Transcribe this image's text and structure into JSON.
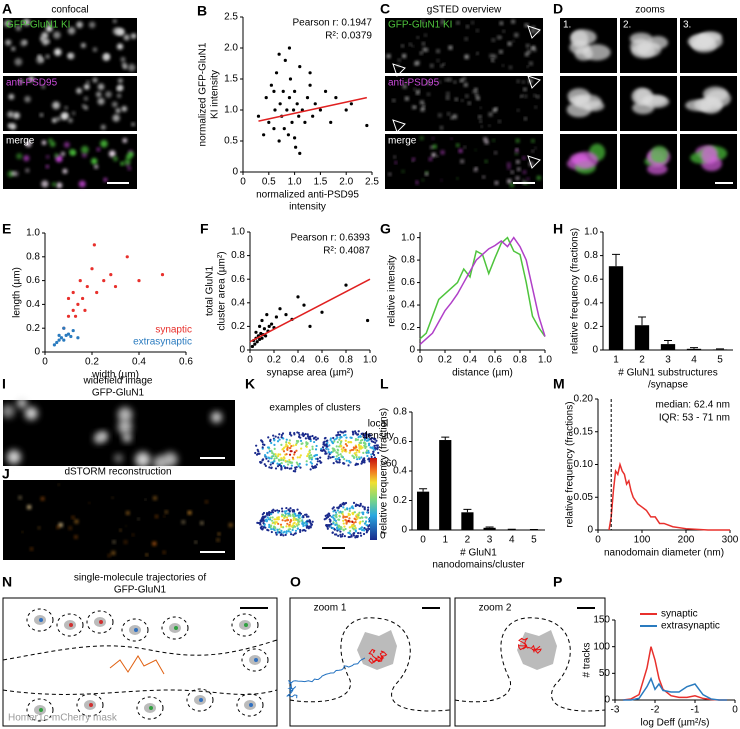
{
  "chart_data": [
    {
      "panel": "B",
      "type": "scatter",
      "annotations": [
        "Pearson r: 0.1947",
        "R²: 0.0379"
      ],
      "xlabel": [
        "normalized anti-PSD95",
        "intensity"
      ],
      "ylabel": [
        "normalized GFP-GluN1",
        "KI intensity"
      ],
      "x": [
        0.3,
        0.4,
        0.45,
        0.5,
        0.55,
        0.6,
        0.62,
        0.65,
        0.7,
        0.72,
        0.75,
        0.78,
        0.8,
        0.82,
        0.85,
        0.88,
        0.9,
        0.92,
        0.95,
        0.98,
        1.0,
        1.02,
        1.05,
        1.08,
        1.1,
        1.15,
        1.2,
        1.25,
        1.3,
        1.35,
        1.4,
        1.5,
        1.6,
        1.7,
        1.8,
        2.0,
        2.1,
        2.4,
        0.7,
        0.9,
        1.1,
        1.3,
        0.6,
        1.0
      ],
      "values": [
        0.9,
        0.6,
        1.2,
        0.8,
        1.4,
        0.7,
        1.0,
        1.6,
        0.5,
        1.1,
        0.9,
        1.3,
        0.7,
        1.8,
        1.0,
        0.6,
        1.2,
        1.5,
        0.8,
        1.0,
        1.3,
        0.4,
        1.1,
        0.9,
        1.7,
        1.0,
        0.8,
        1.2,
        1.4,
        0.9,
        1.1,
        1.0,
        1.3,
        0.8,
        1.2,
        1.0,
        1.1,
        0.75,
        1.9,
        2.0,
        0.3,
        1.6,
        1.3,
        0.55
      ],
      "color": "#000000",
      "fit": {
        "x": [
          0.3,
          2.4
        ],
        "values": [
          0.82,
          1.2
        ],
        "color": "#e02020"
      },
      "xlim": [
        0,
        2.5
      ],
      "xticks": [
        0,
        0.5,
        {
          "value": 1,
          "label": "1.0"
        },
        1.5,
        {
          "value": 2,
          "label": "2.0"
        },
        2.5
      ],
      "ylim": [
        0,
        2.5
      ],
      "yticks": [
        0,
        0.5,
        {
          "value": 1,
          "label": "1.0"
        },
        1.5,
        {
          "value": 2,
          "label": "2.0"
        },
        2.5
      ]
    },
    {
      "panel": "E",
      "type": "scatter",
      "xlabel": [
        "width (µm)"
      ],
      "ylabel": [
        "length (µm)"
      ],
      "legend": "lower right",
      "series": [
        {
          "name": "synaptic",
          "color": "#e8302c",
          "x": [
            0.08,
            0.1,
            0.1,
            0.12,
            0.12,
            0.14,
            0.15,
            0.16,
            0.18,
            0.2,
            0.22,
            0.25,
            0.28,
            0.3,
            0.35,
            0.4,
            0.13,
            0.17,
            0.21,
            0.5
          ],
          "values": [
            0.2,
            0.3,
            0.45,
            0.35,
            0.5,
            0.4,
            0.6,
            0.45,
            0.55,
            0.7,
            0.5,
            0.6,
            0.65,
            0.55,
            0.8,
            0.6,
            0.3,
            0.35,
            0.9,
            0.65
          ]
        },
        {
          "name": "extrasynaptic",
          "color": "#2a7bbf",
          "x": [
            0.04,
            0.05,
            0.06,
            0.07,
            0.08,
            0.09,
            0.1,
            0.11,
            0.12,
            0.06,
            0.08,
            0.14
          ],
          "values": [
            0.06,
            0.08,
            0.1,
            0.12,
            0.1,
            0.14,
            0.15,
            0.13,
            0.18,
            0.14,
            0.2,
            0.12
          ]
        }
      ],
      "xlim": [
        0,
        0.6
      ],
      "xticks": [
        0,
        0.2,
        0.4,
        0.6
      ],
      "ylim": [
        0,
        1
      ],
      "yticks": [
        0,
        0.2,
        0.4,
        0.6,
        0.8,
        {
          "value": 1,
          "label": "1.0"
        }
      ]
    },
    {
      "panel": "F",
      "type": "scatter",
      "annotations": [
        "Pearson r: 0.6393",
        "R²: 0.4087"
      ],
      "xlabel": [
        "synapse area (µm²)"
      ],
      "ylabel": [
        "total GluN1",
        "cluster area (µm²)"
      ],
      "x": [
        0.02,
        0.03,
        0.04,
        0.05,
        0.05,
        0.06,
        0.07,
        0.08,
        0.08,
        0.09,
        0.1,
        0.1,
        0.11,
        0.12,
        0.13,
        0.14,
        0.15,
        0.16,
        0.18,
        0.2,
        0.22,
        0.25,
        0.3,
        0.35,
        0.4,
        0.45,
        0.5,
        0.6,
        0.8,
        0.98
      ],
      "values": [
        0.03,
        0.08,
        0.05,
        0.1,
        0.15,
        0.07,
        0.12,
        0.09,
        0.2,
        0.14,
        0.1,
        0.25,
        0.13,
        0.18,
        0.12,
        0.3,
        0.16,
        0.2,
        0.22,
        0.19,
        0.28,
        0.35,
        0.3,
        0.26,
        0.45,
        0.38,
        0.2,
        0.32,
        0.55,
        0.25
      ],
      "color": "#000000",
      "fit": {
        "x": [
          0,
          1
        ],
        "values": [
          0.07,
          0.6
        ],
        "color": "#e02020"
      },
      "xlim": [
        0,
        1
      ],
      "xticks": [
        0,
        0.2,
        0.4,
        0.6,
        0.8,
        {
          "value": 1,
          "label": "1.0"
        }
      ],
      "ylim": [
        0,
        1
      ],
      "yticks": [
        0,
        0.2,
        0.4,
        0.6,
        0.8,
        {
          "value": 1,
          "label": "1.0"
        }
      ]
    },
    {
      "panel": "G",
      "type": "line",
      "xlabel": [
        "distance (µm)"
      ],
      "ylabel": [
        "relative intensity"
      ],
      "x": [
        0,
        0.05,
        0.1,
        0.15,
        0.2,
        0.25,
        0.3,
        0.35,
        0.4,
        0.45,
        0.5,
        0.55,
        0.6,
        0.65,
        0.7,
        0.75,
        0.8,
        0.85,
        0.9,
        0.95,
        1.0
      ],
      "series": [
        {
          "color": "#4ec43c",
          "values": [
            0.1,
            0.15,
            0.3,
            0.45,
            0.5,
            0.55,
            0.6,
            0.72,
            0.65,
            0.88,
            0.85,
            0.68,
            0.82,
            0.95,
            1.0,
            0.88,
            0.85,
            0.6,
            0.3,
            0.2,
            0.12
          ]
        },
        {
          "color": "#b040c8",
          "values": [
            0.05,
            0.1,
            0.15,
            0.25,
            0.35,
            0.42,
            0.5,
            0.6,
            0.7,
            0.8,
            0.85,
            0.9,
            0.93,
            0.97,
            0.92,
            1.0,
            0.92,
            0.8,
            0.55,
            0.3,
            0.12
          ]
        }
      ],
      "xlim": [
        0,
        1
      ],
      "xticks": [
        0,
        0.2,
        0.4,
        0.6,
        0.8,
        {
          "value": 1,
          "label": "1.0"
        }
      ],
      "ylim": [
        0,
        1.05
      ],
      "yticks": [
        0,
        0.2,
        0.4,
        0.6,
        0.8,
        {
          "value": 1,
          "label": "1.0"
        }
      ]
    },
    {
      "panel": "H",
      "type": "bar",
      "xlabel": [
        "# GluN1 substructures",
        "/synapse"
      ],
      "ylabel": [
        "relative frequency (fractions)"
      ],
      "categories": [
        "1",
        "2",
        "3",
        "4",
        "5"
      ],
      "values": [
        0.71,
        0.21,
        0.05,
        0.01,
        0.005
      ],
      "errors": [
        0.1,
        0.07,
        0.03,
        0.01,
        0.005
      ],
      "color": "#000000",
      "ylim": [
        0,
        1
      ],
      "yticks": [
        0,
        0.2,
        0.4,
        0.6,
        0.8,
        {
          "value": 1,
          "label": "1.0"
        }
      ]
    },
    {
      "panel": "L",
      "type": "bar",
      "xlabel": [
        "# GluN1",
        "nanodomains/cluster"
      ],
      "ylabel": [
        "relative frequency (fractions)"
      ],
      "categories": [
        "0",
        "1",
        "2",
        "3",
        "4",
        "5"
      ],
      "values": [
        0.26,
        0.61,
        0.12,
        0.015,
        0.003,
        0.002
      ],
      "errors": [
        0.02,
        0.02,
        0.02,
        0.005,
        0.002,
        0.001
      ],
      "color": "#000000",
      "ylim": [
        0,
        0.8
      ],
      "yticks": [
        0,
        0.2,
        0.4,
        0.6,
        0.8
      ]
    },
    {
      "panel": "M",
      "type": "line",
      "annotations": [
        "median: 62.4 nm",
        "IQR: 53 - 71 nm"
      ],
      "xlabel": [
        "nanodomain diameter (nm)"
      ],
      "ylabel": [
        "relative frequency (fractions)"
      ],
      "x": [
        25,
        30,
        35,
        40,
        45,
        50,
        55,
        60,
        65,
        70,
        75,
        80,
        90,
        100,
        110,
        120,
        130,
        140,
        150,
        170,
        200,
        250,
        300
      ],
      "series": [
        {
          "color": "#e8302c",
          "values": [
            0,
            0.02,
            0.06,
            0.09,
            0.085,
            0.1,
            0.09,
            0.085,
            0.07,
            0.075,
            0.06,
            0.05,
            0.04,
            0.035,
            0.03,
            0.02,
            0.02,
            0.01,
            0.01,
            0.005,
            0.002,
            0,
            0
          ]
        }
      ],
      "vline": 30,
      "xlim": [
        0,
        300
      ],
      "xticks": [
        0,
        100,
        200,
        300
      ],
      "ylim": [
        0,
        0.2
      ],
      "yticks": [
        0,
        0.05,
        {
          "value": 0.1,
          "label": "0.10"
        },
        0.15,
        {
          "value": 0.2,
          "label": "0.20"
        }
      ]
    },
    {
      "panel": "P",
      "type": "line",
      "xlabel": [
        "log Deff (µm²/s)"
      ],
      "ylabel": [
        "# tracks"
      ],
      "legend": "upper right",
      "x": [
        -2.8,
        -2.6,
        -2.4,
        -2.2,
        -2.1,
        -2.0,
        -1.9,
        -1.8,
        -1.6,
        -1.4,
        -1.2,
        -1.0,
        -0.8,
        -0.6,
        -0.4,
        -0.2
      ],
      "series": [
        {
          "name": "synaptic",
          "color": "#e8302c",
          "values": [
            0,
            2,
            10,
            60,
            100,
            75,
            40,
            20,
            8,
            5,
            5,
            8,
            3,
            1,
            0,
            0
          ]
        },
        {
          "name": "extrasynaptic",
          "color": "#2a7bbf",
          "values": [
            0,
            0,
            3,
            25,
            40,
            20,
            30,
            18,
            15,
            15,
            25,
            30,
            10,
            2,
            0,
            0
          ]
        }
      ],
      "xlim": [
        -3,
        0
      ],
      "xticks": [
        -3,
        -2,
        -1,
        0
      ],
      "ylim": [
        0,
        150
      ],
      "yticks": [
        0,
        50,
        100,
        150
      ]
    }
  ],
  "images": {
    "A": {
      "panel": "A",
      "title": "confocal",
      "rows": [
        "GFP-GluN1 KI",
        "anti-PSD95",
        "merge"
      ]
    },
    "C": {
      "panel": "C",
      "title": "gSTED overview",
      "rows": [
        "GFP-GluN1 KI",
        "anti-PSD95",
        "merge"
      ]
    },
    "D": {
      "panel": "D",
      "title": "zooms",
      "columns": [
        "1.",
        "2.",
        "3."
      ]
    },
    "I": {
      "panel": "I",
      "title": [
        "widefield image",
        "GFP-GluN1"
      ]
    },
    "J": {
      "panel": "J",
      "title": "dSTORM reconstruction"
    },
    "K": {
      "panel": "K",
      "title": "examples of clusters",
      "colorbar": {
        "label": [
          "local",
          "density"
        ],
        "ticks": [
          0,
          {
            "value": 60,
            "label": ">60"
          }
        ]
      }
    },
    "N": {
      "panel": "N",
      "title": [
        "single-molecule trajectories of",
        "GFP-GluN1"
      ],
      "mask_label": "Homer1c-mCherry mask"
    },
    "O": {
      "panel": "O",
      "titles": [
        "zoom 1",
        "zoom 2"
      ]
    }
  }
}
